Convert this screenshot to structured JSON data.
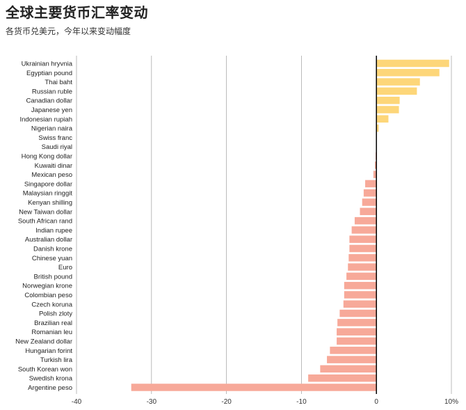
{
  "title": "全球主要货币汇率变动",
  "subtitle": "各货币兑美元，今年以来变动幅度",
  "colors": {
    "positive": "#fdd679",
    "negative": "#f7a999",
    "grid": "#aaaaaa",
    "zero": "#000000"
  },
  "chart_data": {
    "type": "bar",
    "orientation": "horizontal",
    "title": "全球主要货币汇率变动",
    "subtitle": "各货币兑美元，今年以来变动幅度",
    "xlim": [
      -40,
      10
    ],
    "xticks": [
      -40,
      -30,
      -20,
      -10,
      0,
      10
    ],
    "xtick_labels": [
      "-40",
      "-30",
      "-20",
      "-10",
      "0",
      "10%"
    ],
    "grid": true,
    "categories": [
      "Ukrainian hryvnia",
      "Egyptian pound",
      "Thai baht",
      "Russian ruble",
      "Canadian dollar",
      "Japanese yen",
      "Indonesian rupiah",
      "Nigerian naira",
      "Swiss franc",
      "Saudi riyal",
      "Hong Kong dollar",
      "Kuwaiti dinar",
      "Mexican peso",
      "Singapore dollar",
      "Malaysian ringgit",
      "Kenyan shilling",
      "New Taiwan dollar",
      "South African rand",
      "Indian rupee",
      "Australian dollar",
      "Danish krone",
      "Chinese yuan",
      "Euro",
      "British pound",
      "Norwegian krone",
      "Colombian peso",
      "Czech koruna",
      "Polish zloty",
      "Brazilian real",
      "Romanian leu",
      "New Zealand dollar",
      "Hungarian forint",
      "Turkish lira",
      "South Korean won",
      "Swedish krona",
      "Argentine peso"
    ],
    "values": [
      9.7,
      8.4,
      5.8,
      5.4,
      3.1,
      3.0,
      1.6,
      0.3,
      0.0,
      0.0,
      -0.1,
      -0.2,
      -0.4,
      -1.5,
      -1.7,
      -1.9,
      -2.2,
      -2.9,
      -3.3,
      -3.6,
      -3.6,
      -3.7,
      -3.8,
      -4.0,
      -4.3,
      -4.3,
      -4.4,
      -4.9,
      -5.2,
      -5.3,
      -5.3,
      -6.2,
      -6.6,
      -7.5,
      -9.1,
      -32.7
    ]
  }
}
